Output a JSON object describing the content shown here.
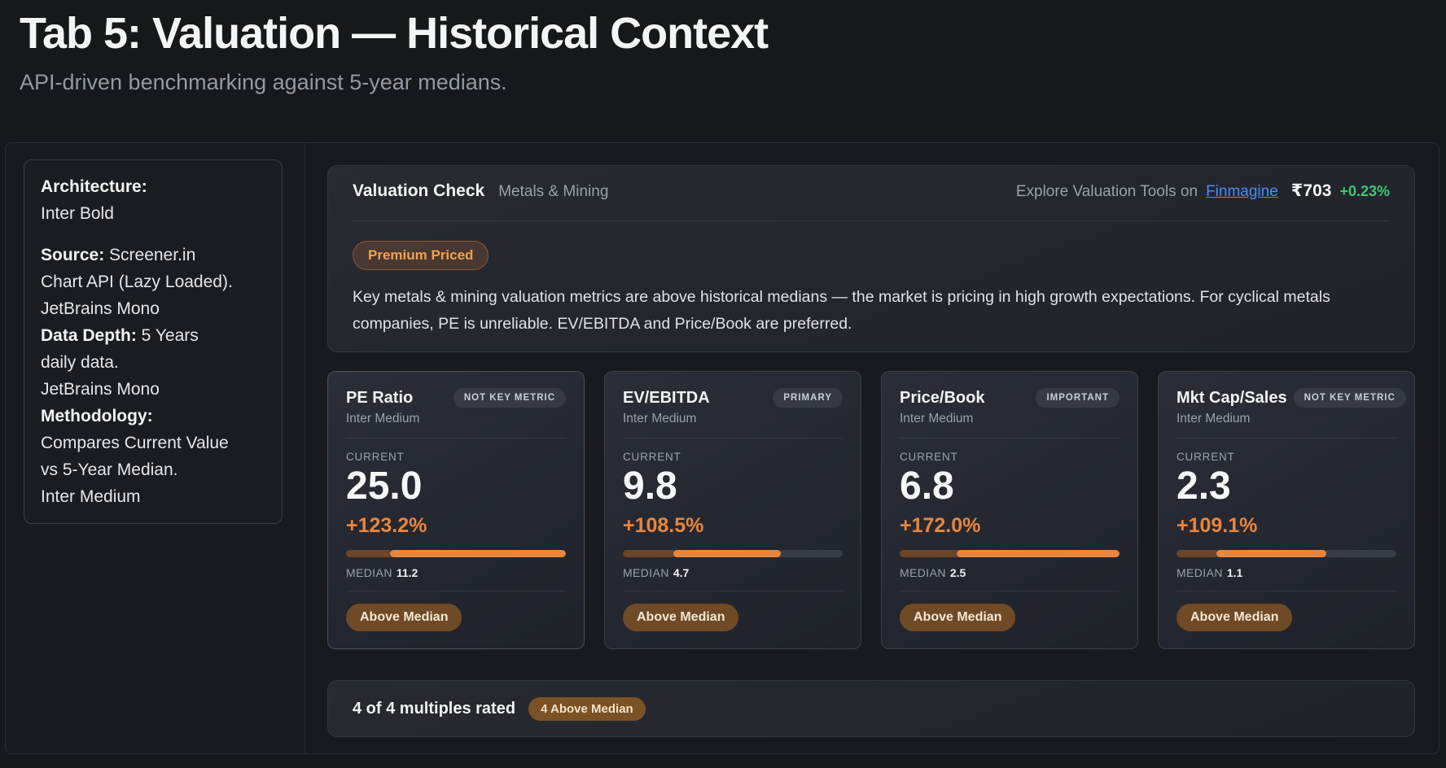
{
  "page": {
    "title": "Tab 5: Valuation — Historical Context",
    "subtitle": "API-driven benchmarking against 5-year medians."
  },
  "sidebar": {
    "lines": [
      {
        "bold": "Architecture:",
        "text": ""
      },
      {
        "bold": "",
        "text": "Inter Bold"
      },
      {
        "spacer": true
      },
      {
        "bold": "Source:",
        "text": " Screener.in"
      },
      {
        "bold": "",
        "text": "Chart API (Lazy Loaded)."
      },
      {
        "bold": "",
        "text": "JetBrains Mono"
      },
      {
        "bold": "Data Depth:",
        "text": " 5 Years"
      },
      {
        "bold": "",
        "text": "daily data."
      },
      {
        "bold": "",
        "text": "JetBrains Mono"
      },
      {
        "bold": "Methodology:",
        "text": ""
      },
      {
        "bold": "",
        "text": "Compares Current Value"
      },
      {
        "bold": "",
        "text": "vs 5-Year Median."
      },
      {
        "bold": "",
        "text": "Inter Medium"
      }
    ]
  },
  "panel": {
    "title": "Valuation Check",
    "sector": "Metals & Mining",
    "explore_text": "Explore Valuation Tools on",
    "explore_link": "Finmagine",
    "price": "₹703",
    "price_change": "+0.23%",
    "status_badge": "Premium Priced",
    "description": "Key metals & mining valuation metrics are above historical medians — the market is pricing in high growth expectations. For cyclical metals companies, PE is unreliable. EV/EBITDA and Price/Book are preferred."
  },
  "cards": [
    {
      "title": "PE Ratio",
      "tag": "NOT KEY METRIC",
      "subtitle": "Inter Medium",
      "current_label": "CURRENT",
      "current": "25.0",
      "change": "+123.2%",
      "median_label": "MEDIAN",
      "median": "11.2",
      "verdict": "Above Median",
      "highlighted": true,
      "bar": {
        "median_pct": 20,
        "fill_pct": 100
      }
    },
    {
      "title": "EV/EBITDA",
      "tag": "PRIMARY",
      "subtitle": "Inter Medium",
      "current_label": "CURRENT",
      "current": "9.8",
      "change": "+108.5%",
      "median_label": "MEDIAN",
      "median": "4.7",
      "verdict": "Above Median",
      "highlighted": false,
      "bar": {
        "median_pct": 23,
        "fill_pct": 72
      }
    },
    {
      "title": "Price/Book",
      "tag": "IMPORTANT",
      "subtitle": "Inter Medium",
      "current_label": "CURRENT",
      "current": "6.8",
      "change": "+172.0%",
      "median_label": "MEDIAN",
      "median": "2.5",
      "verdict": "Above Median",
      "highlighted": false,
      "bar": {
        "median_pct": 26,
        "fill_pct": 100
      }
    },
    {
      "title": "Mkt Cap/Sales",
      "tag": "NOT KEY METRIC",
      "subtitle": "Inter Medium",
      "current_label": "CURRENT",
      "current": "2.3",
      "change": "+109.1%",
      "median_label": "MEDIAN",
      "median": "1.1",
      "verdict": "Above Median",
      "highlighted": false,
      "bar": {
        "median_pct": 18,
        "fill_pct": 68
      }
    }
  ],
  "footer": {
    "summary": "4 of 4 multiples rated",
    "badge": "4 Above Median"
  },
  "colors": {
    "accent_orange": "#e8863d",
    "positive_green": "#3bc878",
    "link_blue": "#4d8bf5",
    "badge_brown": "#6f4a27",
    "background": "#16181c"
  }
}
